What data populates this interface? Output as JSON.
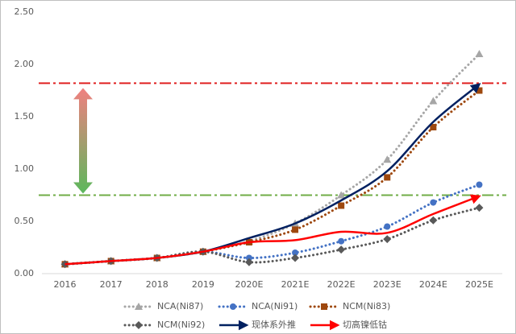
{
  "chart_data": {
    "type": "line",
    "categories": [
      "2016",
      "2017",
      "2018",
      "2019",
      "2020E",
      "2021E",
      "2022E",
      "2023E",
      "2024E",
      "2025E"
    ],
    "ylim": [
      0,
      2.5
    ],
    "yticks": [
      {
        "value": 0,
        "label": "0.00"
      },
      {
        "value": 0.5,
        "label": "0.50"
      },
      {
        "value": 1,
        "label": "1.00"
      },
      {
        "value": 1.5,
        "label": "1.50"
      },
      {
        "value": 2,
        "label": "2.00"
      },
      {
        "value": 2.5,
        "label": "2.50"
      }
    ],
    "grid": false,
    "legend": "bottom",
    "series": [
      {
        "name": "NCA(Ni87)",
        "color": "#a6a6a6",
        "style": "dotted",
        "marker": "triangle",
        "values": [
          0.09,
          0.12,
          0.15,
          0.21,
          0.31,
          0.48,
          0.75,
          1.09,
          1.65,
          2.1
        ]
      },
      {
        "name": "NCA(Ni91)",
        "color": "#4472c4",
        "style": "dotted",
        "marker": "circle",
        "values": [
          0.09,
          0.12,
          0.15,
          0.21,
          0.15,
          0.2,
          0.31,
          0.45,
          0.68,
          0.85
        ]
      },
      {
        "name": "NCM(Ni83)",
        "color": "#9e480e",
        "style": "dotted",
        "marker": "square",
        "values": [
          0.09,
          0.12,
          0.15,
          0.21,
          0.3,
          0.42,
          0.65,
          0.92,
          1.4,
          1.75
        ]
      },
      {
        "name": "NCM(Ni92)",
        "color": "#595959",
        "style": "dotted",
        "marker": "diamond",
        "values": [
          0.09,
          0.12,
          0.15,
          0.21,
          0.11,
          0.15,
          0.23,
          0.33,
          0.51,
          0.63
        ]
      },
      {
        "name": "现体系外推",
        "color": "#002060",
        "style": "solid",
        "marker": "arrow",
        "values": [
          0.09,
          0.12,
          0.15,
          0.21,
          0.34,
          0.48,
          0.7,
          0.98,
          1.45,
          1.81
        ]
      },
      {
        "name": "切高镍低钴",
        "color": "#ff0000",
        "style": "solid",
        "marker": "arrow",
        "values": [
          0.09,
          0.12,
          0.15,
          0.21,
          0.3,
          0.32,
          0.4,
          0.39,
          0.57,
          0.74
        ]
      }
    ],
    "reference_lines": [
      {
        "value": 1.82,
        "color": "#e02020"
      },
      {
        "value": 0.75,
        "color": "#70ad47"
      }
    ]
  }
}
